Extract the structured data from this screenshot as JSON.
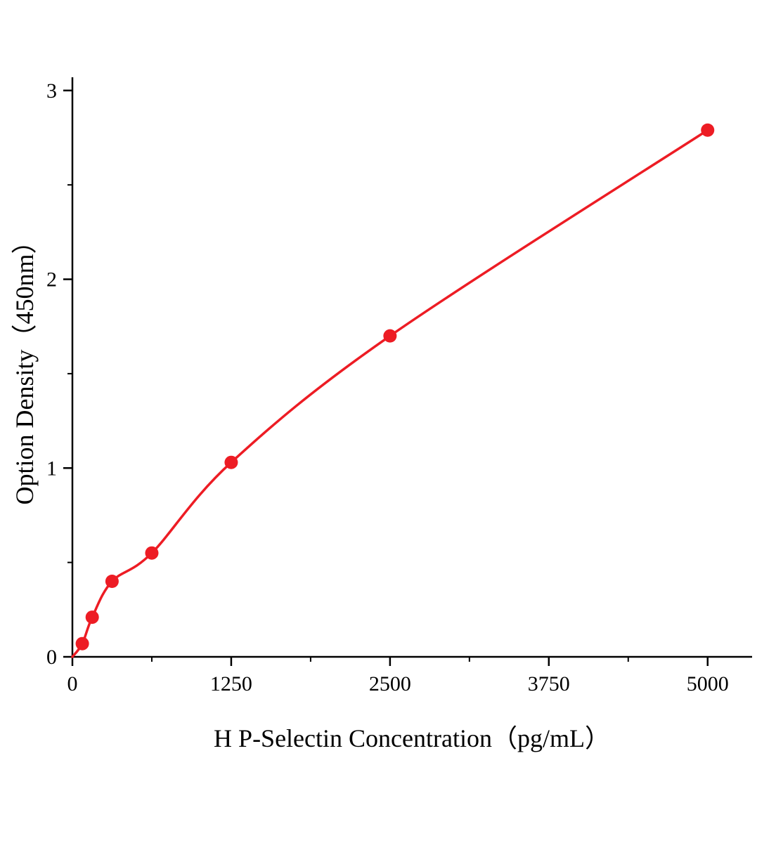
{
  "chart_data": {
    "type": "scatter",
    "title": "",
    "xlabel": "H P-Selectin Concentration（pg/mL）",
    "ylabel": "Option Density（450nm）",
    "x": [
      78,
      156,
      312,
      625,
      1250,
      2500,
      5000
    ],
    "y": [
      0.07,
      0.21,
      0.4,
      0.55,
      1.03,
      1.7,
      2.79
    ],
    "curve_start_x": 0,
    "curve_start_y": 0,
    "xticks": [
      0,
      1250,
      2500,
      3750,
      5000
    ],
    "yticks": [
      0,
      1,
      2,
      3
    ],
    "x_minor_step": 625,
    "y_minor_step": 0.5,
    "xlim": [
      0,
      5350
    ],
    "ylim": [
      0,
      3.07
    ],
    "grid": false,
    "legend": null,
    "line_color": "#ed1c24",
    "marker_color": "#ed1c24",
    "axis_color": "#000000"
  }
}
